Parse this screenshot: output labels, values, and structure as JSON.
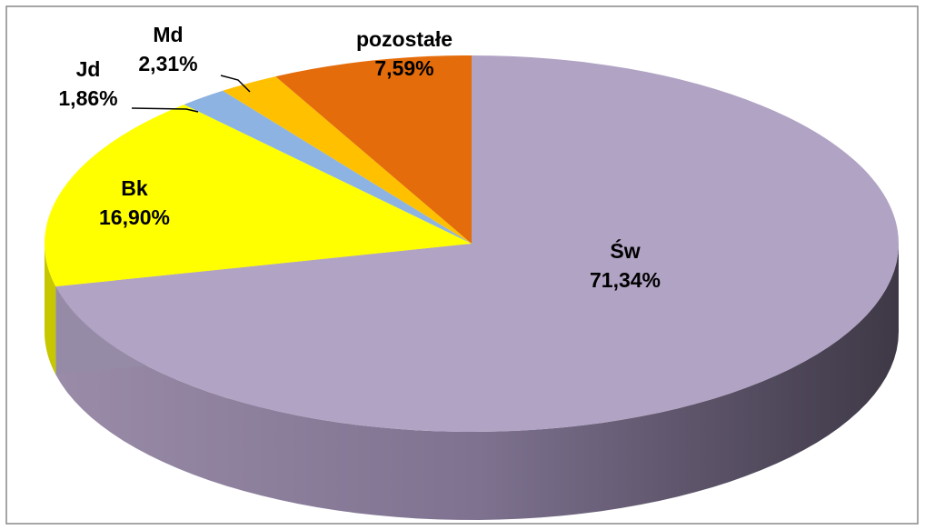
{
  "chart_data": {
    "type": "pie3d",
    "categories": [
      "Św",
      "Bk",
      "Jd",
      "Md",
      "pozostałe"
    ],
    "values": [
      71.34,
      16.9,
      1.86,
      2.31,
      7.59
    ],
    "value_labels": [
      "71,34%",
      "16,90%",
      "1,86%",
      "2,31%",
      "7,59%"
    ],
    "colors": [
      "#b1a3c4",
      "#ffff00",
      "#8db3e2",
      "#ffc000",
      "#e46c0a"
    ]
  }
}
